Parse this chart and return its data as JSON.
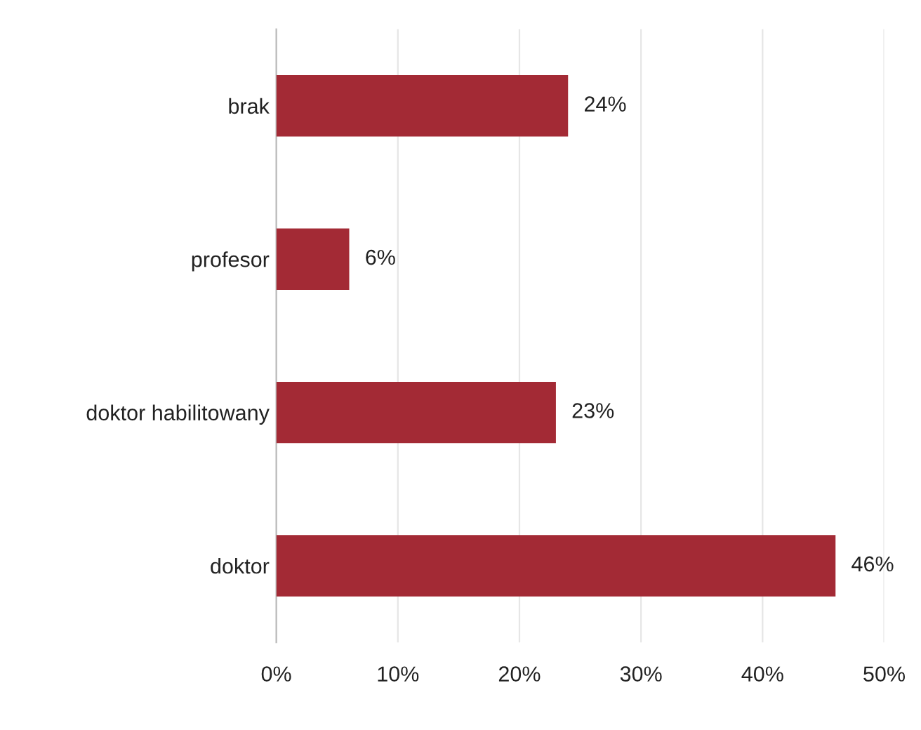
{
  "chart_data": {
    "type": "bar",
    "orientation": "horizontal",
    "categories": [
      "brak",
      "profesor",
      "doktor habilitowany",
      "doktor"
    ],
    "values": [
      24,
      6,
      23,
      46
    ],
    "value_labels": [
      "24%",
      "6%",
      "23%",
      "46%"
    ],
    "color": "#a32a35",
    "xlim": [
      0,
      50
    ],
    "xticks": [
      {
        "value": 0,
        "label": "0%"
      },
      {
        "value": 10,
        "label": "10%"
      },
      {
        "value": 20,
        "label": "20%"
      },
      {
        "value": 30,
        "label": "30%"
      },
      {
        "value": 40,
        "label": "40%"
      },
      {
        "value": 50,
        "label": "50%"
      }
    ],
    "grid": "x",
    "legend": false
  }
}
